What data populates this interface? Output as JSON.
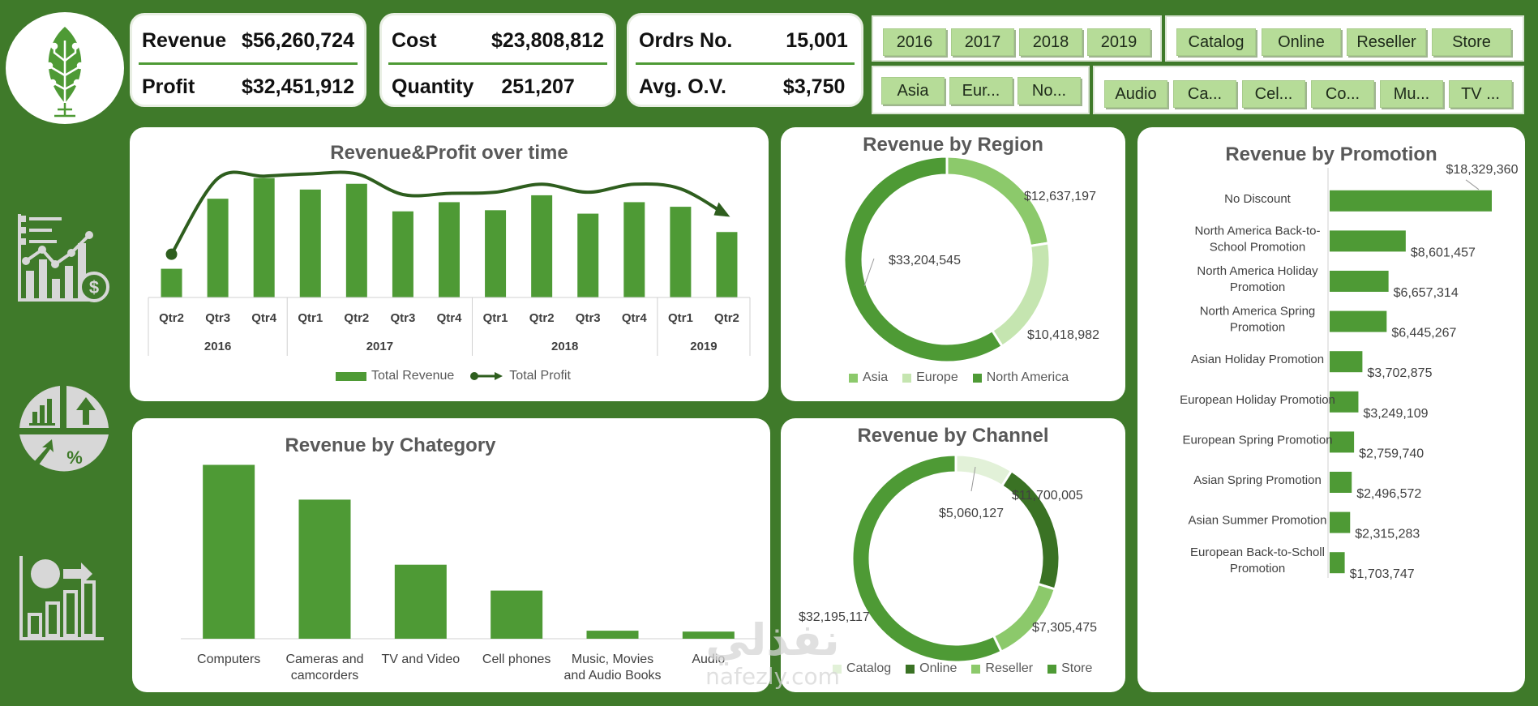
{
  "kpis": {
    "revenue_label": "Revenue",
    "revenue_value": "$56,260,724",
    "profit_label": "Profit",
    "profit_value": "$32,451,912",
    "cost_label": "Cost",
    "cost_value": "$23,808,812",
    "quantity_label": "Quantity",
    "quantity_value": "251,207",
    "orders_label": "Ordrs No.",
    "orders_value": "15,001",
    "aov_label": "Avg. O.V.",
    "aov_value": "$3,750"
  },
  "slicers": {
    "years": [
      "2016",
      "2017",
      "2018",
      "2019"
    ],
    "channels": [
      "Catalog",
      "Online",
      "Reseller",
      "Store"
    ],
    "regions": [
      "Asia",
      "Eur...",
      "No..."
    ],
    "categories": [
      "Audio",
      "Ca...",
      "Cel...",
      "Co...",
      "Mu...",
      "TV ..."
    ]
  },
  "sidebar": {
    "icons": [
      "financial-chart-icon",
      "pie-growth-icon",
      "analytics-icon"
    ]
  },
  "colors": {
    "background": "#3f7a2a",
    "bar": "#4e9a35",
    "dark_green": "#2e5e1e",
    "light_green": "#8cc96b",
    "pale_green": "#c5e5b0",
    "mid_green": "#3a7224"
  },
  "panels": {
    "time_title": "Revenue&Profit over time",
    "region_title": "Revenue by Region",
    "channel_title": "Revenue by Channel",
    "category_title": "Revenue by Chategory",
    "promotion_title": "Revenue by Promotion"
  },
  "chart_data": [
    {
      "type": "bar",
      "title": "Revenue&Profit over time",
      "categories": [
        "Qtr2",
        "Qtr3",
        "Qtr4",
        "Qtr1",
        "Qtr2",
        "Qtr3",
        "Qtr4",
        "Qtr1",
        "Qtr2",
        "Qtr3",
        "Qtr4",
        "Qtr1",
        "Qtr2"
      ],
      "year_groups": [
        {
          "year": "2016",
          "count": 3
        },
        {
          "year": "2017",
          "count": 4
        },
        {
          "year": "2018",
          "count": 4
        },
        {
          "year": "2019",
          "count": 2
        }
      ],
      "series": [
        {
          "name": "Total Revenue",
          "type": "bar",
          "values": [
            2.5,
            8.6,
            10.4,
            9.4,
            9.9,
            7.5,
            8.3,
            7.6,
            8.9,
            7.3,
            8.3,
            7.9,
            5.7
          ]
        },
        {
          "name": "Total Profit",
          "type": "line",
          "values": [
            3.2,
            9.8,
            10.0,
            10.2,
            10.2,
            8.4,
            8.5,
            8.6,
            9.3,
            8.6,
            9.3,
            8.9,
            6.6
          ]
        }
      ],
      "legend": "bottom",
      "grid": false
    },
    {
      "type": "pie",
      "title": "Revenue by Region",
      "categories": [
        "Asia",
        "Europe",
        "North America"
      ],
      "values": [
        12637197,
        10418982,
        33204545
      ],
      "labels": [
        "$12,637,197",
        "$10,418,982",
        "$33,204,545"
      ],
      "colors": [
        "#8cc96b",
        "#c5e5b0",
        "#4e9a35"
      ],
      "legend": "bottom"
    },
    {
      "type": "pie",
      "title": "Revenue by Channel",
      "categories": [
        "Catalog",
        "Online",
        "Reseller",
        "Store"
      ],
      "values": [
        5060127,
        11700005,
        7305475,
        32195117
      ],
      "labels": [
        "$5,060,127",
        "$11,700,005",
        "$7,305,475",
        "$32,195,117"
      ],
      "colors": [
        "#e2f1d8",
        "#3a7224",
        "#8cc96b",
        "#4e9a35"
      ],
      "legend": "bottom"
    },
    {
      "type": "bar",
      "title": "Revenue by Chategory",
      "categories": [
        "Computers",
        "Cameras and camcorders",
        "TV and Video",
        "Cell phones",
        "Music, Movies and Audio Books",
        "Audio"
      ],
      "values": [
        19.5,
        15.6,
        8.3,
        5.4,
        0.9,
        0.8
      ],
      "legend": "none",
      "grid": false
    },
    {
      "type": "bar",
      "orientation": "horizontal",
      "title": "Revenue by Promotion",
      "categories": [
        "No Discount",
        "North America Back-to-School Promotion",
        "North America Holiday Promotion",
        "North America Spring Promotion",
        "Asian Holiday Promotion",
        "European Holiday Promotion",
        "European Spring Promotion",
        "Asian Spring Promotion",
        "Asian Summer Promotion",
        "European Back-to-Scholl Promotion"
      ],
      "values": [
        18329360,
        8601457,
        6657314,
        6445267,
        3702875,
        3249109,
        2759740,
        2496572,
        2315283,
        1703747
      ],
      "labels": [
        "$18,329,360",
        "$8,601,457",
        "$6,657,314",
        "$6,445,267",
        "$3,702,875",
        "$3,249,109",
        "$2,759,740",
        "$2,496,572",
        "$2,315,283",
        "$1,703,747"
      ],
      "legend": "none"
    }
  ],
  "watermark": {
    "arabic": "نفذلي",
    "latin": "nafezly.com"
  }
}
